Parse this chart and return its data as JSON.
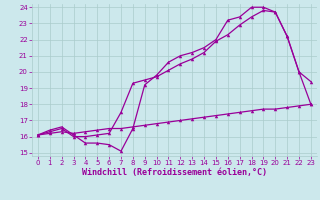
{
  "bg_color": "#cce8ec",
  "grid_color": "#aacccc",
  "line_color": "#990099",
  "title": "Windchill (Refroidissement éolien,°C)",
  "xlim": [
    -0.5,
    23.5
  ],
  "ylim": [
    14.8,
    24.2
  ],
  "xticks": [
    0,
    1,
    2,
    3,
    4,
    5,
    6,
    7,
    8,
    9,
    10,
    11,
    12,
    13,
    14,
    15,
    16,
    17,
    18,
    19,
    20,
    21,
    22,
    23
  ],
  "yticks": [
    15,
    16,
    17,
    18,
    19,
    20,
    21,
    22,
    23,
    24
  ],
  "line1_x": [
    0,
    1,
    2,
    3,
    4,
    5,
    6,
    7,
    8,
    9,
    10,
    11,
    12,
    13,
    14,
    15,
    16,
    17,
    18,
    19,
    20,
    21,
    22,
    23
  ],
  "line1_y": [
    16.1,
    16.4,
    16.6,
    16.1,
    15.6,
    15.6,
    15.5,
    15.1,
    16.5,
    19.2,
    19.8,
    20.6,
    21.0,
    21.2,
    21.5,
    22.0,
    23.2,
    23.4,
    24.0,
    24.0,
    23.7,
    22.2,
    20.0,
    19.4
  ],
  "line2_x": [
    0,
    1,
    2,
    3,
    4,
    5,
    6,
    7,
    8,
    9,
    10,
    11,
    12,
    13,
    14,
    15,
    16,
    17,
    18,
    19,
    20,
    21,
    22,
    23
  ],
  "line2_y": [
    16.1,
    16.3,
    16.5,
    16.0,
    16.0,
    16.1,
    16.2,
    17.5,
    19.3,
    19.5,
    19.7,
    20.1,
    20.5,
    20.8,
    21.2,
    21.9,
    22.3,
    22.9,
    23.4,
    23.8,
    23.7,
    22.2,
    20.0,
    18.0
  ],
  "line3_x": [
    0,
    1,
    2,
    3,
    4,
    5,
    6,
    7,
    8,
    9,
    10,
    11,
    12,
    13,
    14,
    15,
    16,
    17,
    18,
    19,
    20,
    21,
    22,
    23
  ],
  "line3_y": [
    16.1,
    16.2,
    16.3,
    16.2,
    16.3,
    16.4,
    16.5,
    16.5,
    16.6,
    16.7,
    16.8,
    16.9,
    17.0,
    17.1,
    17.2,
    17.3,
    17.4,
    17.5,
    17.6,
    17.7,
    17.7,
    17.8,
    17.9,
    18.0
  ],
  "tick_fontsize": 5,
  "label_fontsize": 6,
  "marker_size": 2.5,
  "line_width": 0.9
}
